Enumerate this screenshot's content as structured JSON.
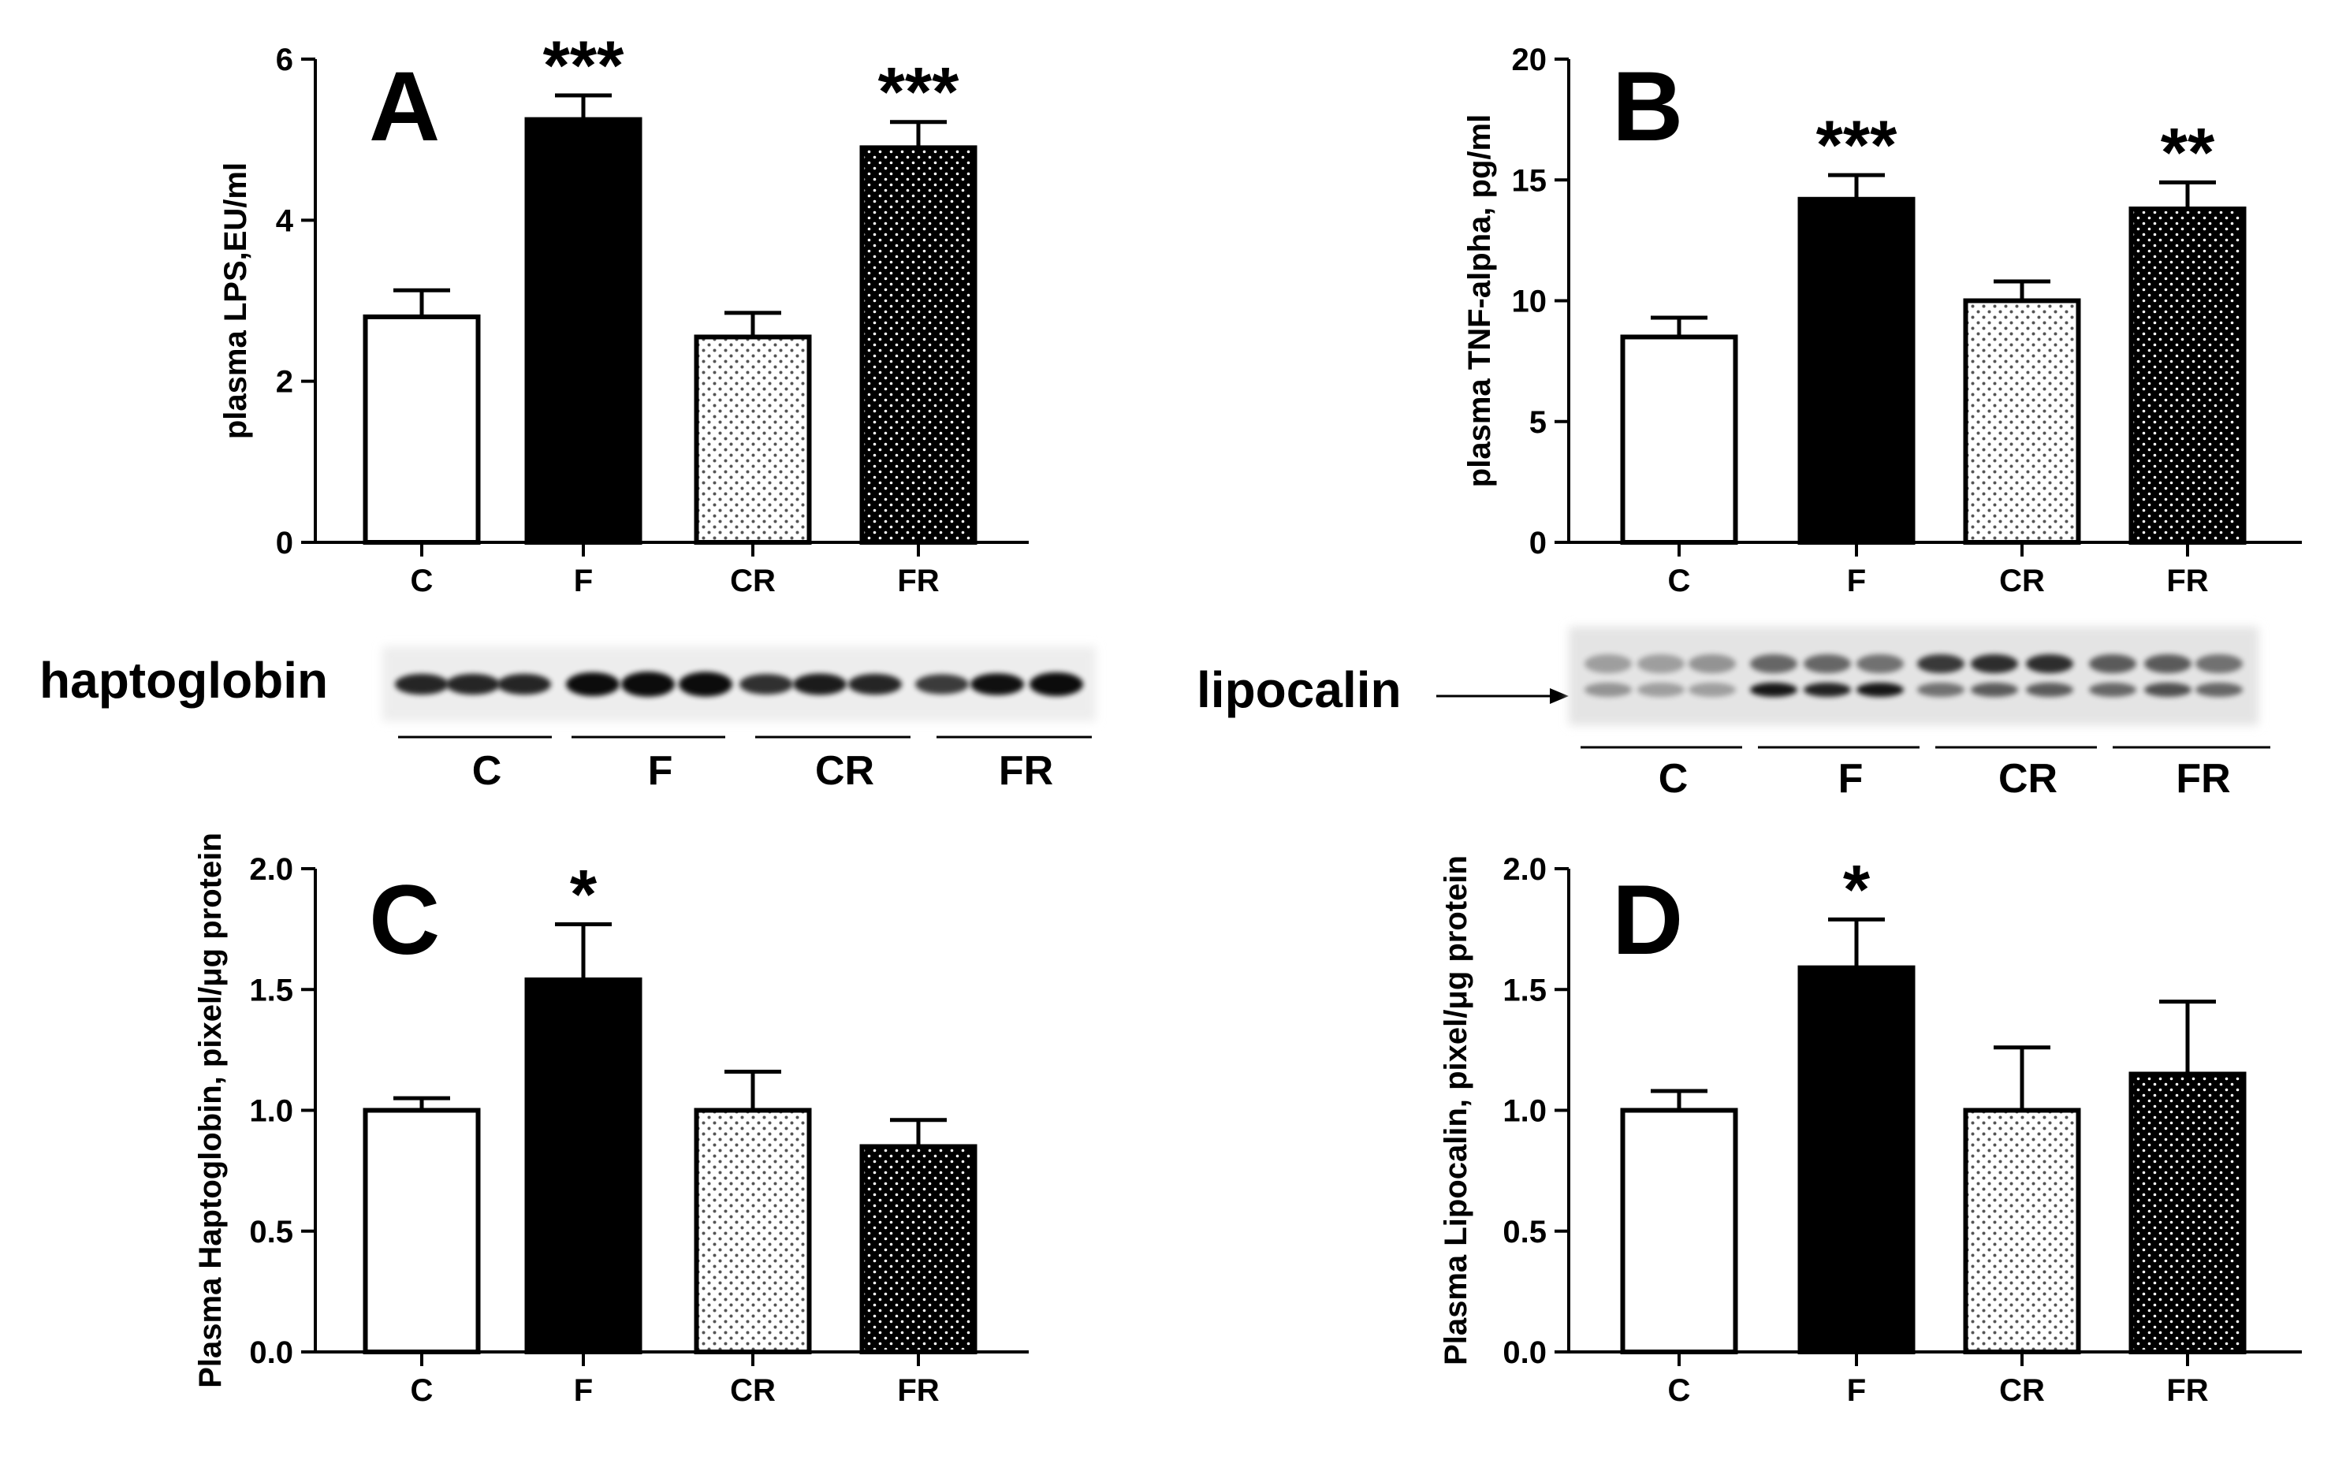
{
  "figure": {
    "blot_haptoglobin": {
      "label": "haptoglobin",
      "groups": [
        "C",
        "F",
        "CR",
        "FR"
      ]
    },
    "blot_lipocalin": {
      "label": "lipocalin",
      "groups": [
        "C",
        "F",
        "CR",
        "FR"
      ]
    }
  },
  "colors": {
    "C": "#ffffff",
    "F": "#000000",
    "CR": "light dotted",
    "FR": "dark dotted"
  },
  "chart_data": [
    {
      "type": "bar",
      "panel": "A",
      "categories": [
        "C",
        "F",
        "CR",
        "FR"
      ],
      "values": [
        2.8,
        5.25,
        2.55,
        4.9
      ],
      "errors": [
        0.33,
        0.3,
        0.3,
        0.32
      ],
      "significance": [
        "",
        "***",
        "",
        "***"
      ],
      "title": "",
      "xlabel": "",
      "ylabel": "plasma LPS,EU/ml",
      "ylim": [
        0,
        6
      ],
      "yticks": [
        0,
        2,
        4,
        6
      ],
      "ytick_labels": [
        "0",
        "2",
        "4",
        "6"
      ]
    },
    {
      "type": "bar",
      "panel": "B",
      "categories": [
        "C",
        "F",
        "CR",
        "FR"
      ],
      "values": [
        8.5,
        14.2,
        10.0,
        13.8
      ],
      "errors": [
        0.8,
        1.0,
        0.8,
        1.1
      ],
      "significance": [
        "",
        "***",
        "",
        "**"
      ],
      "title": "",
      "xlabel": "",
      "ylabel": "plasma TNF-alpha, pg/ml",
      "ylim": [
        0,
        20
      ],
      "yticks": [
        0,
        5,
        10,
        15,
        20
      ],
      "ytick_labels": [
        "0",
        "5",
        "10",
        "15",
        "20"
      ]
    },
    {
      "type": "bar",
      "panel": "C",
      "categories": [
        "C",
        "F",
        "CR",
        "FR"
      ],
      "values": [
        1.0,
        1.54,
        1.0,
        0.85
      ],
      "errors": [
        0.05,
        0.23,
        0.16,
        0.11
      ],
      "significance": [
        "",
        "*",
        "",
        ""
      ],
      "title": "",
      "xlabel": "",
      "ylabel": "Plasma Haptoglobin, pixel/μg protein",
      "ylim": [
        0,
        2.0
      ],
      "yticks": [
        0,
        0.5,
        1.0,
        1.5,
        2.0
      ],
      "ytick_labels": [
        "0.0",
        "0.5",
        "1.0",
        "1.5",
        "2.0"
      ]
    },
    {
      "type": "bar",
      "panel": "D",
      "categories": [
        "C",
        "F",
        "CR",
        "FR"
      ],
      "values": [
        1.0,
        1.59,
        1.0,
        1.15
      ],
      "errors": [
        0.08,
        0.2,
        0.26,
        0.3
      ],
      "significance": [
        "",
        "*",
        "",
        ""
      ],
      "title": "",
      "xlabel": "",
      "ylabel": "Plasma Lipocalin, pixel/μg protein",
      "ylim": [
        0,
        2.0
      ],
      "yticks": [
        0,
        0.5,
        1.0,
        1.5,
        2.0
      ],
      "ytick_labels": [
        "0.0",
        "0.5",
        "1.0",
        "1.5",
        "2.0"
      ]
    }
  ]
}
